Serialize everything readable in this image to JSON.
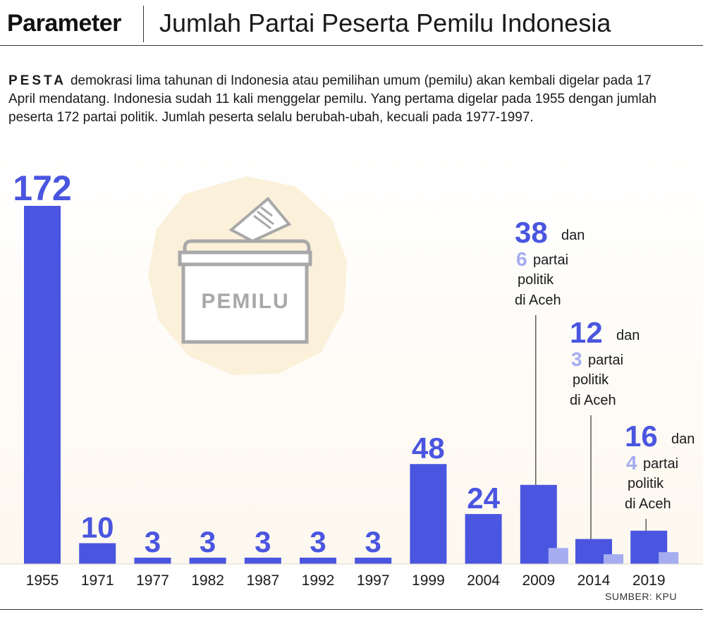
{
  "header": {
    "brand": "Parameter",
    "title": "Jumlah Partai Peserta Pemilu Indonesia"
  },
  "intro": {
    "lead": "PESTA",
    "text": "demokrasi lima tahunan di Indonesia atau pemilihan umum (pemilu) akan kembali digelar pada 17 April mendatang. Indonesia sudah 11 kali menggelar pemilu. Yang pertama digelar pada 1955 dengan jumlah peserta 172 partai politik. Jumlah peserta selalu berubah-ubah, kecuali pada 1977-1997."
  },
  "illustration": {
    "label": "PEMILU"
  },
  "source": "SUMBER: KPU",
  "colors": {
    "national": "#4a55e0",
    "aceh": "#a6acf0",
    "ballot_box": "#a8a8a8",
    "halo": "#fbf0da"
  },
  "chart_data": {
    "type": "bar",
    "categories": [
      "1955",
      "1971",
      "1977",
      "1982",
      "1987",
      "1992",
      "1997",
      "1999",
      "2004",
      "2009",
      "2014",
      "2019"
    ],
    "series": [
      {
        "values": [
          172,
          10,
          3,
          3,
          3,
          3,
          3,
          48,
          24,
          38,
          12,
          16
        ]
      },
      {
        "values": [
          null,
          null,
          null,
          null,
          null,
          null,
          null,
          null,
          null,
          6,
          3,
          4
        ]
      }
    ],
    "data_labels": [
      "172",
      "10",
      "3",
      "3",
      "3",
      "3",
      "3",
      "48",
      "24",
      "38",
      "12",
      "16"
    ],
    "annotations": [
      {
        "category": "2009",
        "main": "38",
        "dan": "dan",
        "aceh": "6",
        "suffix1": "partai",
        "suffix2": "politik",
        "suffix3": "di Aceh"
      },
      {
        "category": "2014",
        "main": "12",
        "dan": "dan",
        "aceh": "3",
        "suffix1": "partai",
        "suffix2": "politik",
        "suffix3": "di Aceh"
      },
      {
        "category": "2019",
        "main": "16",
        "dan": "dan",
        "aceh": "4",
        "suffix1": "partai",
        "suffix2": "politik",
        "suffix3": "di Aceh"
      }
    ],
    "ylim": [
      0,
      172
    ],
    "grid": false,
    "legend": "none"
  }
}
